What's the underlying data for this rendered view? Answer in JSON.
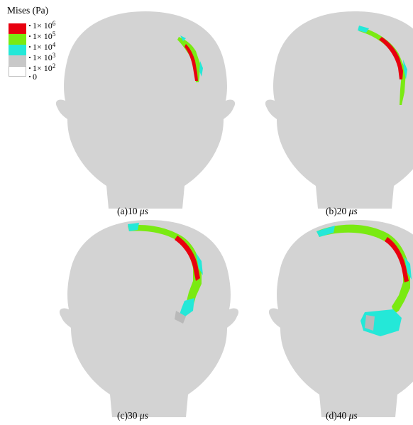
{
  "legend": {
    "title": "Mises (Pa)",
    "entries": [
      {
        "label_base": "1× 10",
        "label_exp": "6",
        "color": "#e8000f"
      },
      {
        "label_base": "1× 10",
        "label_exp": "5",
        "color": "#7aea12"
      },
      {
        "label_base": "1× 10",
        "label_exp": "4",
        "color": "#24e8d8"
      },
      {
        "label_base": "1× 10",
        "label_exp": "3",
        "color": "#c8c8c8"
      },
      {
        "label_base": "1× 10",
        "label_exp": "2",
        "color": "#ffffff"
      },
      {
        "label_base": "0",
        "label_exp": "",
        "color": "#ffffff"
      }
    ]
  },
  "colors": {
    "head": "#d3d3d3",
    "red": "#e8000f",
    "green": "#7aea12",
    "cyan": "#24e8d8",
    "gray": "#b9b9b9"
  },
  "panels": [
    {
      "id": "a",
      "caption_prefix": "(a)10 ",
      "caption_unit": "μs"
    },
    {
      "id": "b",
      "caption_prefix": "(b)20 ",
      "caption_unit": "μs"
    },
    {
      "id": "c",
      "caption_prefix": "(c)30 ",
      "caption_unit": "μs"
    },
    {
      "id": "d",
      "caption_prefix": "(d)40 ",
      "caption_unit": "μs"
    }
  ]
}
